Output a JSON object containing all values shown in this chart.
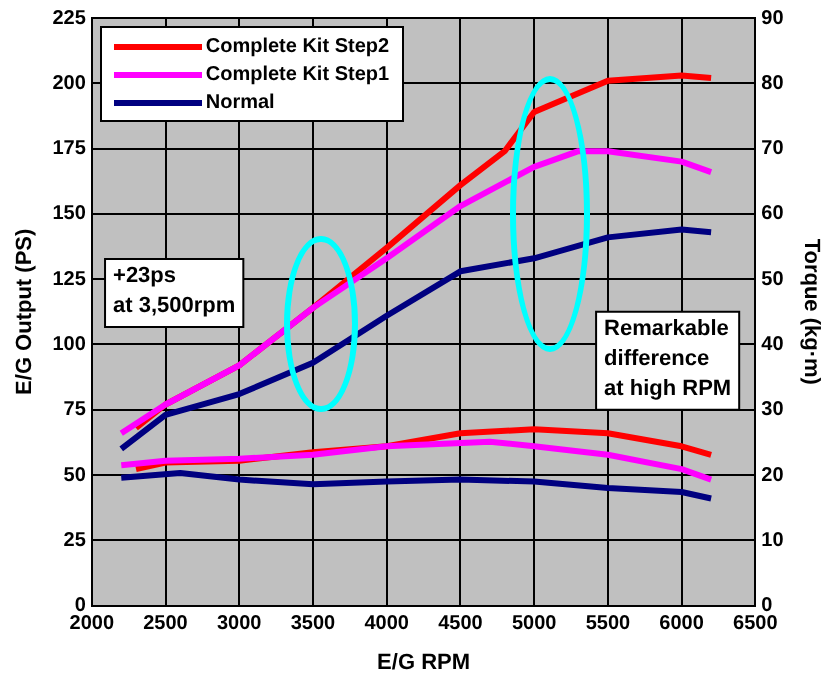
{
  "chart_data": {
    "type": "line",
    "xlabel": "E/G RPM",
    "ylabel": "E/G Output (PS)",
    "y2label": "Torque (kg·m)",
    "xlim": [
      2000,
      6500
    ],
    "xticks": [
      2000,
      2500,
      3000,
      3500,
      4000,
      4500,
      5000,
      5500,
      6000,
      6500
    ],
    "ylim": [
      0,
      225
    ],
    "yticks": [
      0,
      25,
      50,
      75,
      100,
      125,
      150,
      175,
      200,
      225
    ],
    "y2lim": [
      0,
      90
    ],
    "y2ticks": [
      0,
      10,
      20,
      30,
      40,
      50,
      60,
      70,
      80,
      90
    ],
    "grid": true,
    "legend": "top left",
    "marker": "none",
    "line_style": "solid",
    "annotations": [
      "+23ps\nat 3,500rpm",
      "Remarkable\ndifference\nat high RPM"
    ],
    "series": [
      {
        "name": "Complete Kit Step2",
        "color": "#ff0000",
        "x": [
          2300,
          2500,
          3000,
          3500,
          4000,
          4500,
          4800,
          5000,
          5500,
          6000,
          6200
        ],
        "values": [
          68,
          77,
          92,
          114,
          137,
          161,
          174,
          189,
          201,
          203,
          202
        ]
      },
      {
        "name": "Complete Kit Step1",
        "color": "#ff00ff",
        "x": [
          2200,
          2500,
          3000,
          3500,
          4000,
          4500,
          5000,
          5300,
          5500,
          6000,
          6200
        ],
        "values": [
          66,
          77,
          92,
          114,
          133,
          153,
          168,
          174,
          174,
          170,
          166
        ]
      },
      {
        "name": "Normal",
        "color": "#000080",
        "x": [
          2200,
          2500,
          3000,
          3500,
          4000,
          4500,
          5000,
          5500,
          6000,
          6200
        ],
        "values": [
          60,
          73,
          81,
          93,
          111,
          128,
          133,
          141,
          144,
          143
        ]
      },
      {
        "color": "#ff0000",
        "axis": "y2",
        "x": [
          2300,
          2500,
          3000,
          3500,
          4000,
          4500,
          5000,
          5500,
          6000,
          6200
        ],
        "values": [
          20.9,
          21.9,
          22.2,
          23.5,
          24.4,
          26.4,
          27,
          26.4,
          24.4,
          23.1
        ]
      },
      {
        "color": "#ff00ff",
        "axis": "y2",
        "x": [
          2200,
          2500,
          3000,
          3500,
          4000,
          4700,
          5000,
          5500,
          6000,
          6200
        ],
        "values": [
          21.5,
          22.2,
          22.5,
          23.1,
          24.4,
          25.1,
          24.4,
          23.1,
          20.9,
          19.3
        ]
      },
      {
        "color": "#000080",
        "axis": "y2",
        "x": [
          2200,
          2600,
          3000,
          3500,
          4000,
          4500,
          5000,
          5500,
          6000,
          6200
        ],
        "values": [
          19.6,
          20.3,
          19.3,
          18.6,
          19,
          19.3,
          19,
          18,
          17.4,
          16.4
        ]
      }
    ]
  }
}
